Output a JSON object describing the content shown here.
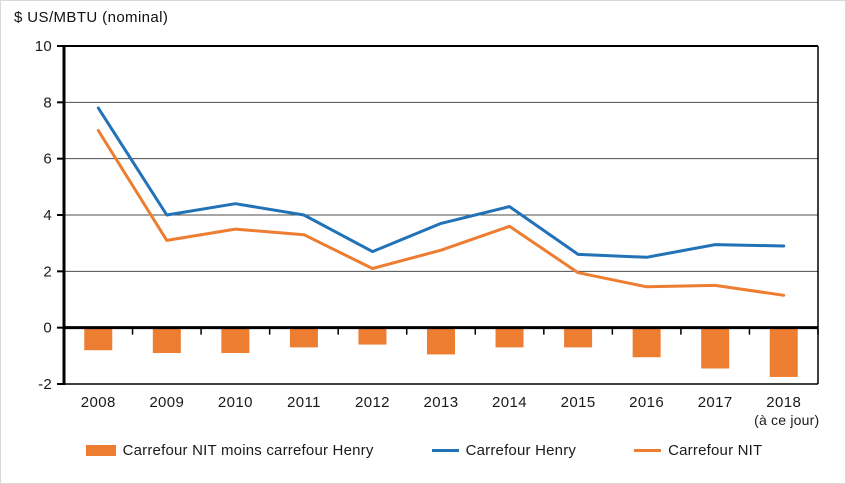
{
  "title": "$ US/MBTU (nominal)",
  "chart_data": {
    "type": "combo bar+line",
    "title": "",
    "ylabel": "$ US/MBTU (nominal)",
    "xlabel": "",
    "categories": [
      "2008",
      "2009",
      "2010",
      "2011",
      "2012",
      "2013",
      "2014",
      "2015",
      "2016",
      "2017",
      "2018"
    ],
    "last_category_note": "(à ce jour)",
    "ylim": [
      -2,
      10
    ],
    "yticks": [
      10,
      8,
      6,
      4,
      2,
      0,
      -2
    ],
    "grid": true,
    "legend_position": "bottom",
    "series": [
      {
        "name": "Carrefour NIT moins carrefour Henry",
        "type": "bar",
        "color": "#ED7D31",
        "values": [
          -0.8,
          -0.9,
          -0.9,
          -0.7,
          -0.6,
          -0.95,
          -0.7,
          -0.7,
          -1.05,
          -1.45,
          -1.75
        ]
      },
      {
        "name": "Carrefour Henry",
        "type": "line",
        "color": "#2272B8",
        "values": [
          7.8,
          4.0,
          4.4,
          4.0,
          2.7,
          3.7,
          4.3,
          2.6,
          2.5,
          2.95,
          2.9
        ]
      },
      {
        "name": "Carrefour NIT",
        "type": "line",
        "color": "#ED7D31",
        "values": [
          7.0,
          3.1,
          3.5,
          3.3,
          2.1,
          2.75,
          3.6,
          1.95,
          1.45,
          1.5,
          1.15
        ]
      }
    ]
  },
  "colors": {
    "axis": "#000000",
    "grid": "#4D4D4D",
    "text": "#1A1A1A",
    "blue": "#2272B8",
    "orange": "#ED7D31"
  }
}
